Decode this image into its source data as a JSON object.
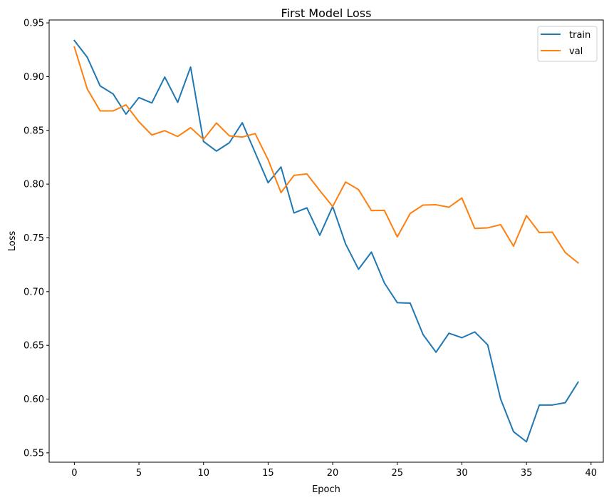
{
  "chart_data": {
    "type": "line",
    "title": "First Model Loss",
    "xlabel": "Epoch",
    "ylabel": "Loss",
    "xlim": [
      -1.95,
      40.95
    ],
    "ylim": [
      0.5413,
      0.9527
    ],
    "xticks": [
      0,
      5,
      10,
      15,
      20,
      25,
      30,
      35,
      40
    ],
    "yticks": [
      0.55,
      0.6,
      0.65,
      0.7,
      0.75,
      0.8,
      0.85,
      0.9,
      0.95
    ],
    "yticklabels": [
      "0.55",
      "0.60",
      "0.65",
      "0.70",
      "0.75",
      "0.80",
      "0.85",
      "0.90",
      "0.95"
    ],
    "legend_position": "top-right",
    "grid": false,
    "x": [
      0,
      1,
      2,
      3,
      4,
      5,
      6,
      7,
      8,
      9,
      10,
      11,
      12,
      13,
      14,
      15,
      16,
      17,
      18,
      19,
      20,
      21,
      22,
      23,
      24,
      25,
      26,
      27,
      28,
      29,
      30,
      31,
      32,
      33,
      34,
      35,
      36,
      37,
      38,
      39
    ],
    "series": [
      {
        "name": "train",
        "color": "#1f77b4",
        "values": [
          0.9336,
          0.918,
          0.8913,
          0.8839,
          0.8651,
          0.8805,
          0.8755,
          0.8996,
          0.8761,
          0.9089,
          0.8397,
          0.8307,
          0.8385,
          0.8571,
          0.8293,
          0.8013,
          0.8159,
          0.7732,
          0.7779,
          0.7524,
          0.7792,
          0.7443,
          0.7208,
          0.7368,
          0.7081,
          0.6897,
          0.6893,
          0.66,
          0.6436,
          0.6613,
          0.6571,
          0.6625,
          0.6505,
          0.6001,
          0.5697,
          0.5603,
          0.5945,
          0.5945,
          0.5966,
          0.6158
        ]
      },
      {
        "name": "val",
        "color": "#ff7f0e",
        "values": [
          0.9276,
          0.8885,
          0.8681,
          0.8681,
          0.8737,
          0.858,
          0.8457,
          0.8497,
          0.8443,
          0.8525,
          0.8416,
          0.8569,
          0.8449,
          0.8438,
          0.847,
          0.8227,
          0.7921,
          0.8081,
          0.8095,
          0.794,
          0.7792,
          0.802,
          0.7949,
          0.7754,
          0.7756,
          0.7509,
          0.7727,
          0.7805,
          0.7808,
          0.7785,
          0.7871,
          0.7588,
          0.7593,
          0.7623,
          0.7423,
          0.7707,
          0.7549,
          0.7553,
          0.7364,
          0.7267
        ]
      }
    ]
  }
}
